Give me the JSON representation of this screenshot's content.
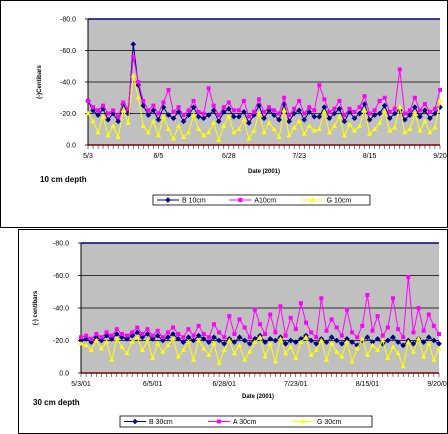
{
  "colors": {
    "plot_bg": "#c0c0c0",
    "frame_top": "#000080",
    "frame_bottom": "#800000",
    "series_B": "#000080",
    "series_A": "#ff00ff",
    "series_G": "#ffff00"
  },
  "chart_data": [
    {
      "type": "line",
      "ylabel": "(-)Centibars",
      "xlabel": "Date (2001)",
      "depth_label": "10 cm depth",
      "ylim": [
        -80,
        0
      ],
      "yticks": [
        0,
        -20,
        -40,
        -60,
        -80
      ],
      "ytick_labels": [
        "0.0",
        "-20.0",
        "-40.0",
        "-60.0",
        "-80.0"
      ],
      "xlim": [
        0,
        140
      ],
      "xticks": [
        0,
        28,
        56,
        84,
        112,
        140
      ],
      "xtick_labels": [
        "5/3",
        "6/5",
        "6/28",
        "7/23",
        "8/15",
        "9/20"
      ],
      "grid": true,
      "series": [
        {
          "name": "B 10cm",
          "marker": "diamond",
          "color": "#000080",
          "values": [
            -28,
            -22,
            -19,
            -23,
            -16,
            -20,
            -15,
            -26,
            -20,
            -64,
            -38,
            -25,
            -19,
            -22,
            -16,
            -24,
            -19,
            -17,
            -21,
            -15,
            -19,
            -24,
            -18,
            -17,
            -19,
            -22,
            -15,
            -21,
            -23,
            -18,
            -18,
            -21,
            -14,
            -19,
            -25,
            -17,
            -22,
            -19,
            -16,
            -26,
            -15,
            -20,
            -22,
            -16,
            -21,
            -18,
            -18,
            -24,
            -17,
            -20,
            -23,
            -15,
            -21,
            -17,
            -20,
            -26,
            -16,
            -19,
            -20,
            -25,
            -17,
            -20,
            -22,
            -16,
            -19,
            -24,
            -18,
            -22,
            -17,
            -20,
            -24
          ]
        },
        {
          "name": "A10cm",
          "marker": "square",
          "color": "#ff00ff",
          "values": [
            -28,
            -24,
            -22,
            -25,
            -20,
            -22,
            -18,
            -27,
            -23,
            -56,
            -40,
            -28,
            -22,
            -25,
            -20,
            -27,
            -35,
            -21,
            -24,
            -19,
            -22,
            -28,
            -21,
            -20,
            -36,
            -25,
            -19,
            -24,
            -27,
            -22,
            -22,
            -28,
            -18,
            -21,
            -29,
            -21,
            -24,
            -22,
            -20,
            -30,
            -19,
            -23,
            -28,
            -20,
            -24,
            -22,
            -38,
            -29,
            -21,
            -23,
            -28,
            -19,
            -23,
            -21,
            -24,
            -31,
            -20,
            -22,
            -28,
            -30,
            -21,
            -23,
            -48,
            -20,
            -22,
            -30,
            -22,
            -26,
            -21,
            -23,
            -35
          ]
        },
        {
          "name": "G 10cm",
          "marker": "triangle",
          "color": "#ffff00",
          "values": [
            -20,
            -15,
            -8,
            -18,
            -6,
            -12,
            -5,
            -22,
            -14,
            -44,
            -30,
            -12,
            -8,
            -15,
            -6,
            -18,
            -10,
            -4,
            -12,
            -5,
            -8,
            -19,
            -10,
            -6,
            -8,
            -14,
            -3,
            -12,
            -18,
            -8,
            -10,
            -16,
            -4,
            -9,
            -20,
            -8,
            -14,
            -10,
            -5,
            -22,
            -6,
            -11,
            -15,
            -7,
            -12,
            -9,
            -10,
            -21,
            -8,
            -12,
            -18,
            -6,
            -13,
            -9,
            -12,
            -22,
            -7,
            -10,
            -14,
            -21,
            -9,
            -11,
            -24,
            -8,
            -10,
            -20,
            -9,
            -15,
            -8,
            -11,
            -28
          ]
        }
      ]
    },
    {
      "type": "line",
      "ylabel": "(-) centibars",
      "xlabel": "Date (2001)",
      "depth_label": "30 cm depth",
      "ylim": [
        -80,
        0
      ],
      "yticks": [
        0,
        -20,
        -40,
        -60,
        -80
      ],
      "ytick_labels": [
        "0.0",
        "-20.0",
        "-40.0",
        "-60.0",
        "-80.0"
      ],
      "xlim": [
        0,
        140
      ],
      "xticks": [
        0,
        28,
        56,
        84,
        112,
        140
      ],
      "xtick_labels": [
        "5/3/01",
        "6/5/01",
        "6/28/01",
        "7/23/01",
        "8/15/01",
        "9/20/01"
      ],
      "grid": true,
      "series": [
        {
          "name": "B 30cm",
          "marker": "diamond",
          "color": "#000080",
          "values": [
            -20,
            -21,
            -19,
            -22,
            -20,
            -23,
            -21,
            -24,
            -22,
            -21,
            -23,
            -25,
            -22,
            -24,
            -21,
            -23,
            -20,
            -22,
            -24,
            -21,
            -19,
            -22,
            -20,
            -23,
            -21,
            -19,
            -22,
            -20,
            -18,
            -21,
            -19,
            -22,
            -20,
            -18,
            -21,
            -23,
            -19,
            -21,
            -20,
            -22,
            -18,
            -20,
            -19,
            -21,
            -23,
            -20,
            -18,
            -21,
            -19,
            -22,
            -20,
            -18,
            -21,
            -19,
            -17,
            -20,
            -22,
            -19,
            -21,
            -18,
            -20,
            -22,
            -19,
            -17,
            -20,
            -18,
            -21,
            -19,
            -22,
            -20,
            -18
          ]
        },
        {
          "name": "A 30cm",
          "marker": "square",
          "color": "#ff00ff",
          "values": [
            -22,
            -23,
            -21,
            -24,
            -22,
            -25,
            -23,
            -27,
            -24,
            -23,
            -25,
            -28,
            -24,
            -27,
            -23,
            -26,
            -22,
            -25,
            -28,
            -24,
            -22,
            -27,
            -23,
            -29,
            -24,
            -22,
            -30,
            -25,
            -22,
            -35,
            -24,
            -33,
            -28,
            -22,
            -39,
            -30,
            -24,
            -36,
            -25,
            -41,
            -23,
            -34,
            -27,
            -43,
            -31,
            -25,
            -22,
            -46,
            -26,
            -33,
            -28,
            -23,
            -39,
            -25,
            -22,
            -29,
            -48,
            -26,
            -35,
            -23,
            -28,
            -46,
            -27,
            -22,
            -59,
            -25,
            -40,
            -26,
            -36,
            -29,
            -24
          ]
        },
        {
          "name": "G 30cm",
          "marker": "triangle",
          "color": "#ffff00",
          "values": [
            -18,
            -17,
            -14,
            -20,
            -15,
            -19,
            -8,
            -21,
            -16,
            -12,
            -19,
            -22,
            -14,
            -20,
            -9,
            -18,
            -13,
            -17,
            -21,
            -10,
            -14,
            -19,
            -8,
            -20,
            -15,
            -11,
            -18,
            -6,
            -14,
            -20,
            -12,
            -17,
            -8,
            -13,
            -19,
            -22,
            -10,
            -18,
            -7,
            -21,
            -12,
            -16,
            -9,
            -19,
            -22,
            -11,
            -14,
            -20,
            -8,
            -18,
            -13,
            -10,
            -19,
            -7,
            -15,
            -21,
            -11,
            -17,
            -14,
            -20,
            -9,
            -16,
            -12,
            -4,
            -19,
            -13,
            -21,
            -10,
            -18,
            -8,
            -15
          ]
        }
      ]
    }
  ]
}
